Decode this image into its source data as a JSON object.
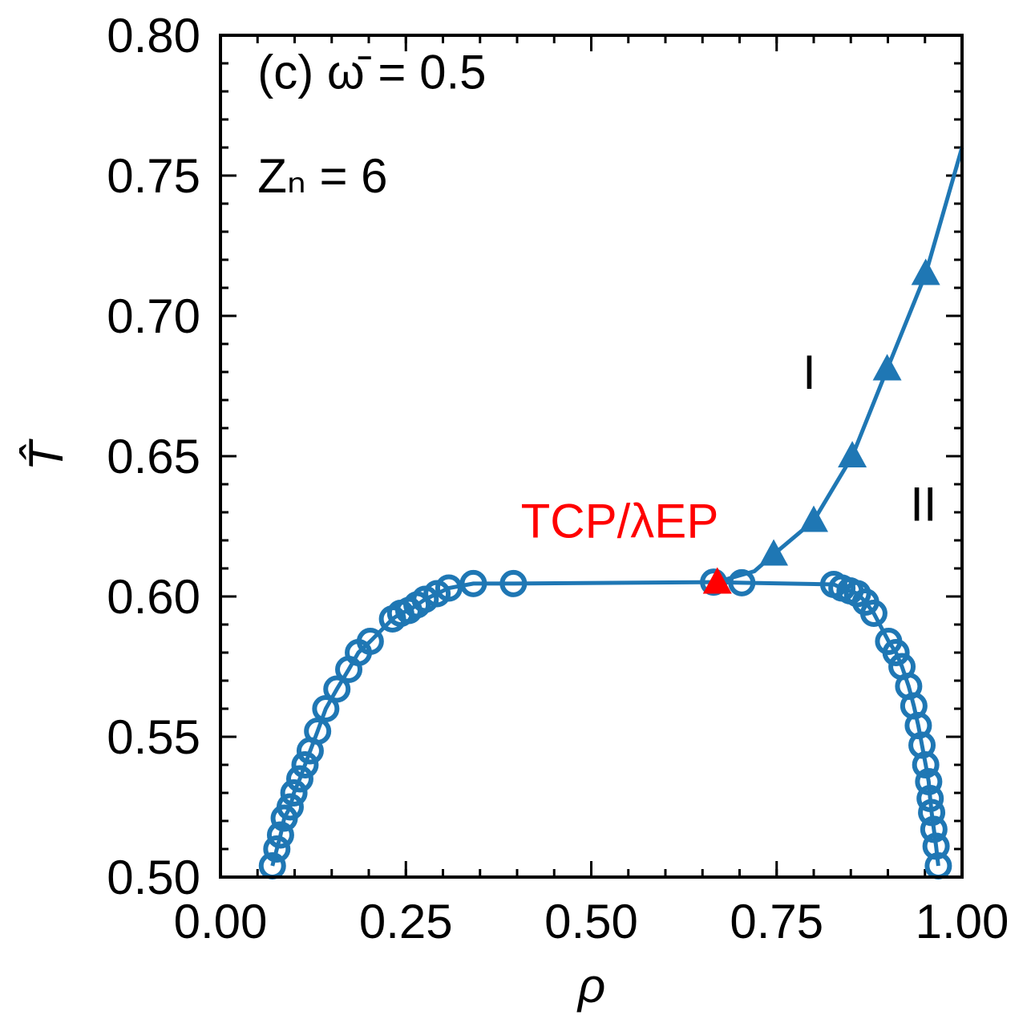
{
  "chart_data": {
    "type": "scatter",
    "xlabel": "ρ",
    "ylabel": "T̂",
    "annotations": [
      {
        "text": "(c) ω̄ = 0.5",
        "x": 0.05,
        "y": 0.781
      },
      {
        "text": "Zₙ = 6",
        "x": 0.05,
        "y": 0.744
      },
      {
        "text": "I",
        "x": 0.785,
        "y": 0.674
      },
      {
        "text": "II",
        "x": 0.93,
        "y": 0.627
      },
      {
        "text": "TCP/λEP",
        "x": 0.405,
        "y": 0.621,
        "color": "#ff0000"
      }
    ],
    "xlim": [
      0,
      1
    ],
    "ylim": [
      0.5,
      0.8
    ],
    "xticks": [
      {
        "value": 0,
        "label": "0.00"
      },
      {
        "value": 0.25,
        "label": "0.25"
      },
      {
        "value": 0.5,
        "label": "0.50"
      },
      {
        "value": 0.75,
        "label": "0.75"
      },
      {
        "value": 1,
        "label": "1.00"
      }
    ],
    "yticks": [
      {
        "value": 0.5,
        "label": "0.50"
      },
      {
        "value": 0.55,
        "label": "0.55"
      },
      {
        "value": 0.6,
        "label": "0.60"
      },
      {
        "value": 0.65,
        "label": "0.65"
      },
      {
        "value": 0.7,
        "label": "0.70"
      },
      {
        "value": 0.75,
        "label": "0.75"
      },
      {
        "value": 0.8,
        "label": "0.80"
      }
    ],
    "xminor_step": 0.05,
    "yminor_step": 0.01,
    "series": [
      {
        "color": "#1f77b4",
        "marker": "circle",
        "line": true,
        "x": [
          0.07,
          0.076,
          0.081,
          0.086,
          0.094,
          0.099,
          0.107,
          0.114,
          0.121,
          0.131,
          0.142,
          0.157,
          0.173,
          0.186,
          0.202,
          0.232,
          0.243,
          0.254,
          0.265,
          0.276,
          0.292,
          0.308,
          0.341,
          0.395,
          0.665,
          0.703,
          0.827,
          0.838,
          0.849,
          0.859,
          0.87,
          0.881,
          0.901,
          0.911,
          0.919,
          0.928,
          0.935,
          0.941,
          0.946,
          0.951,
          0.955,
          0.957,
          0.959,
          0.962,
          0.965,
          0.968
        ],
        "values": [
          0.504,
          0.51,
          0.515,
          0.521,
          0.525,
          0.53,
          0.535,
          0.54,
          0.545,
          0.552,
          0.56,
          0.567,
          0.574,
          0.58,
          0.584,
          0.592,
          0.594,
          0.595,
          0.597,
          0.599,
          0.601,
          0.603,
          0.6046,
          0.6046,
          0.6051,
          0.6049,
          0.6043,
          0.603,
          0.602,
          0.601,
          0.598,
          0.594,
          0.584,
          0.58,
          0.575,
          0.568,
          0.561,
          0.554,
          0.547,
          0.54,
          0.534,
          0.528,
          0.523,
          0.517,
          0.511,
          0.504
        ]
      },
      {
        "color": "#1f77b4",
        "marker": "none",
        "line": true,
        "x": [
          0.667,
          0.72,
          0.746,
          0.8,
          0.852,
          0.899,
          0.951,
          1.0
        ],
        "values": [
          0.605,
          0.609,
          0.615,
          0.627,
          0.65,
          0.681,
          0.715,
          0.76
        ]
      },
      {
        "color": "#1f77b4",
        "marker": "triangle",
        "line": false,
        "x": [
          0.746,
          0.8,
          0.852,
          0.899,
          0.951
        ],
        "values": [
          0.615,
          0.627,
          0.65,
          0.681,
          0.715
        ]
      },
      {
        "color": "#ff0000",
        "marker": "triangle",
        "line": false,
        "x": [
          0.67
        ],
        "values": [
          0.605
        ]
      }
    ]
  }
}
